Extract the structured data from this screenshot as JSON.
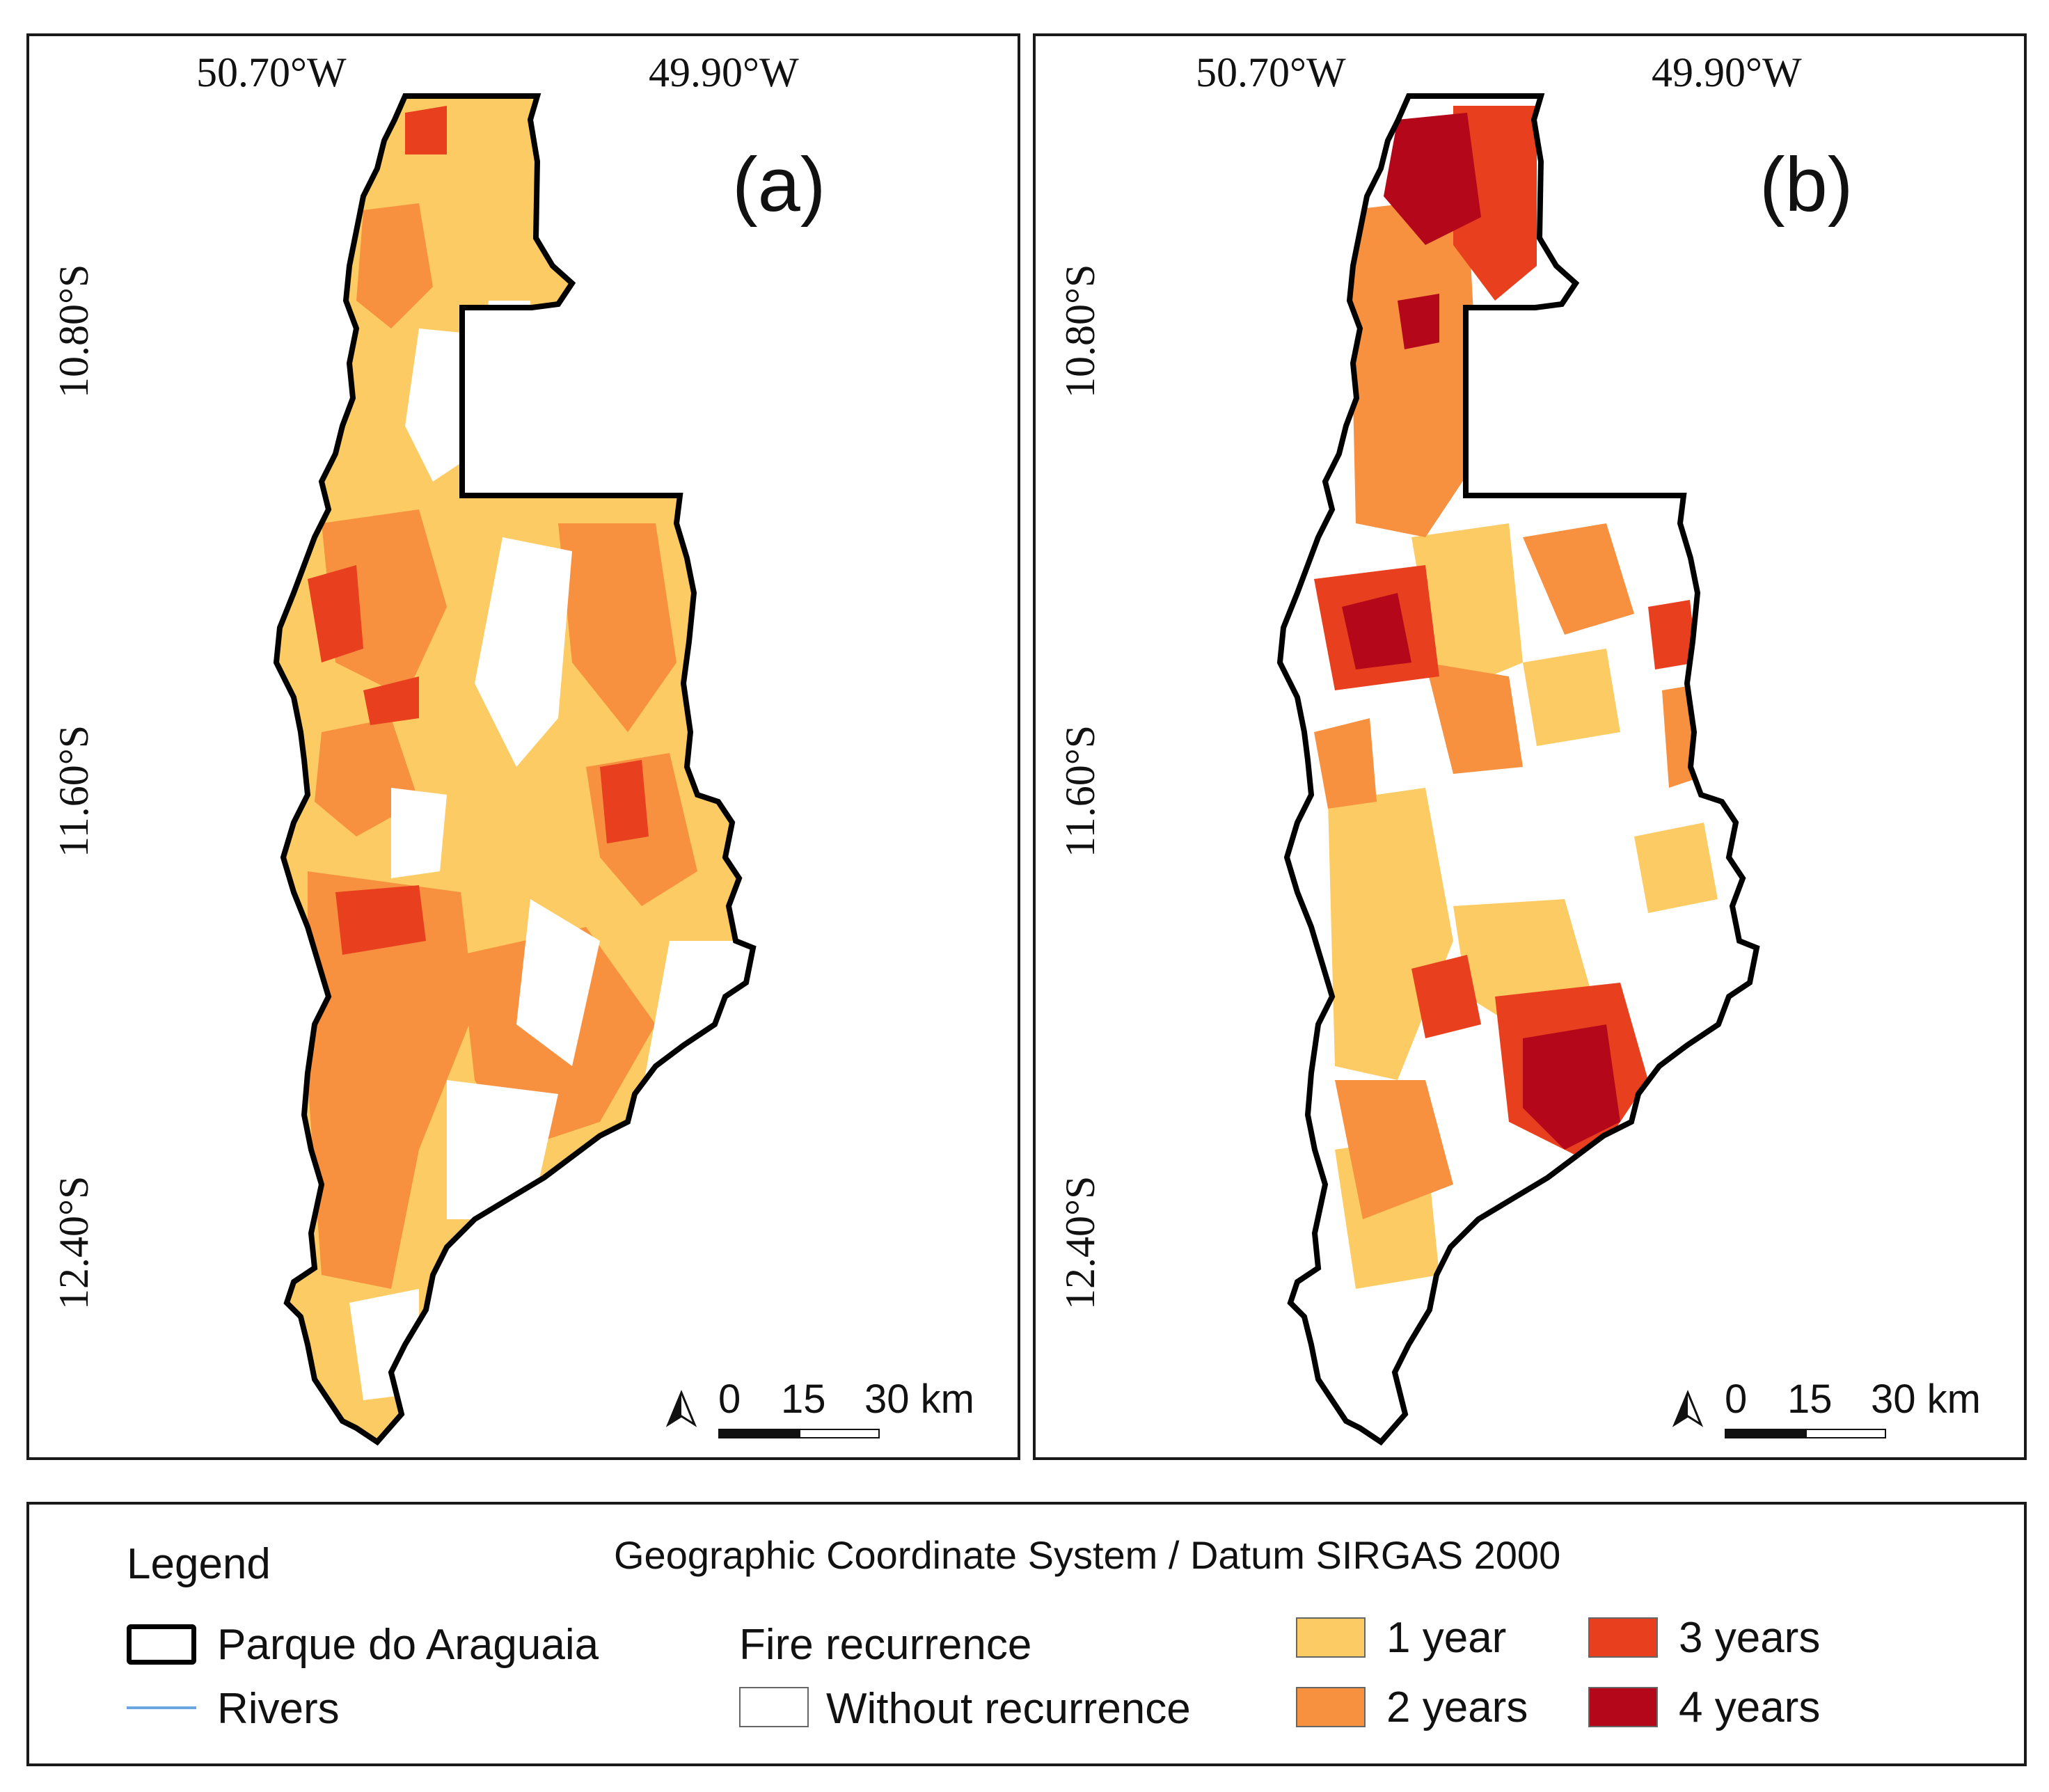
{
  "panels": [
    {
      "id": "a",
      "label": "(a)",
      "lon_labels": [
        "50.70°W",
        "49.90°W"
      ],
      "lat_labels": [
        "10.80°S",
        "11.60°S",
        "12.40°S"
      ],
      "scale": {
        "zero": "0",
        "mid": "15",
        "end": "30 km"
      }
    },
    {
      "id": "b",
      "label": "(b)",
      "lon_labels": [
        "50.70°W",
        "49.90°W"
      ],
      "lat_labels": [
        "10.80°S",
        "11.60°S",
        "12.40°S"
      ],
      "scale": {
        "zero": "0",
        "mid": "15",
        "end": "30 km"
      }
    }
  ],
  "legend": {
    "title": "Legend",
    "crs": "Geographic Coordinate System / Datum SIRGAS 2000",
    "boundary_label": "Parque do Araguaia",
    "rivers_label": "Rivers",
    "fire_title": "Fire recurrence",
    "classes": [
      {
        "label": "Without recurrence",
        "color": "#ffffff"
      },
      {
        "label": "1 year",
        "color": "#fdcb63"
      },
      {
        "label": "2 years",
        "color": "#f79140"
      },
      {
        "label": "3 years",
        "color": "#e8401e"
      },
      {
        "label": "4 years",
        "color": "#b5071a"
      }
    ],
    "river_color": "#6aa6e0"
  }
}
